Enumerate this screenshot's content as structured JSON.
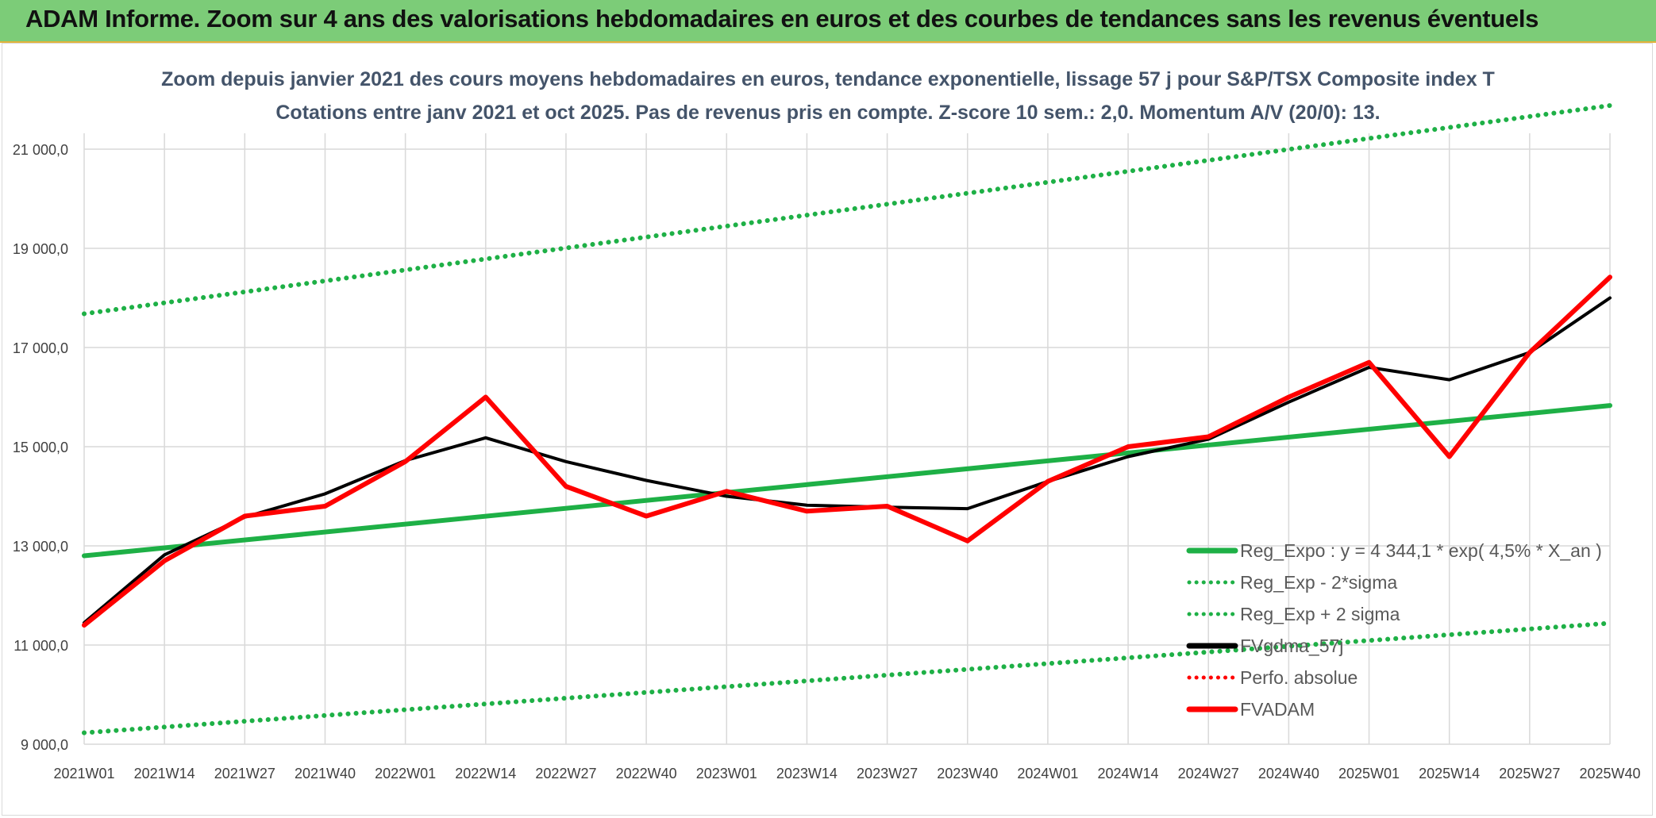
{
  "banner": {
    "title": "ADAM Informe. Zoom sur 4 ans des valorisations hebdomadaires en euros et des courbes de tendances sans les revenus éventuels"
  },
  "colors": {
    "banner_bg": "#7ccc78",
    "reg_line": "#1eb046",
    "black_line": "#000000",
    "red_line": "#ff0000",
    "grid": "#d9d9d9",
    "title": "#44546a"
  },
  "chart_data": {
    "type": "line",
    "title": "Zoom depuis janvier 2021 des cours moyens hebdomadaires en euros, tendance exponentielle, lissage 57 j pour S&P/TSX Composite index T",
    "subtitle": "Cotations entre janv 2021 et oct 2025. Pas de revenus pris en compte. Z-score 10 sem.: 2,0. Momentum A/V (20/0): 13.",
    "x_ticks": [
      "2021W01",
      "2021W14",
      "2021W27",
      "2021W40",
      "2022W01",
      "2022W14",
      "2022W27",
      "2022W40",
      "2023W01",
      "2023W14",
      "2023W27",
      "2023W40",
      "2024W01",
      "2024W14",
      "2024W27",
      "2024W40",
      "2025W01",
      "2025W14",
      "2025W27",
      "2025W40"
    ],
    "y_ticks": [
      "9 000,0",
      "11 000,0",
      "13 000,0",
      "15 000,0",
      "17 000,0",
      "19 000,0",
      "21 000,0"
    ],
    "ylim": [
      9000,
      21000
    ],
    "grid": true,
    "legend_position": "bottom-right",
    "legend": [
      {
        "label": "Reg_Expo : y = 4 344,1 * exp( 4,5% *  X_an )",
        "style": "solid",
        "color": "#1eb046"
      },
      {
        "label": "Reg_Exp - 2*sigma",
        "style": "dotted",
        "color": "#1eb046"
      },
      {
        "label": "Reg_Exp + 2 sigma",
        "style": "dotted",
        "color": "#1eb046"
      },
      {
        "label": "FVgdma_57j",
        "style": "solid",
        "color": "#000000"
      },
      {
        "label": "Perfo. absolue",
        "style": "dotted",
        "color": "#ff0000"
      },
      {
        "label": "FVADAM",
        "style": "solid",
        "color": "#ff0000"
      }
    ],
    "series": [
      {
        "name": "Reg_Expo : y = 4 344,1 * exp( 4,5% *  X_an )",
        "x": [
          "2021W01",
          "2025W40"
        ],
        "values": [
          12800,
          15830
        ]
      },
      {
        "name": "Reg_Exp - 2*sigma",
        "x": [
          "2021W01",
          "2025W40"
        ],
        "values": [
          9230,
          11440
        ]
      },
      {
        "name": "Reg_Exp + 2 sigma",
        "x": [
          "2021W01",
          "2025W40"
        ],
        "values": [
          17680,
          21880
        ]
      },
      {
        "name": "FVgdma_57j",
        "x": [
          "2021W01",
          "2021W14",
          "2021W27",
          "2021W40",
          "2022W01",
          "2022W14",
          "2022W27",
          "2022W40",
          "2023W01",
          "2023W14",
          "2023W27",
          "2023W40",
          "2024W01",
          "2024W14",
          "2024W27",
          "2024W40",
          "2025W01",
          "2025W14",
          "2025W27",
          "2025W40"
        ],
        "values": [
          11450,
          12820,
          13580,
          14050,
          14720,
          15180,
          14700,
          14320,
          14000,
          13820,
          13780,
          13750,
          14300,
          14800,
          15150,
          15900,
          16600,
          16350,
          16900,
          18000
        ]
      },
      {
        "name": "FVADAM",
        "x": [
          "2021W01",
          "2021W14",
          "2021W27",
          "2021W40",
          "2022W01",
          "2022W14",
          "2022W27",
          "2022W40",
          "2023W01",
          "2023W14",
          "2023W27",
          "2023W40",
          "2024W01",
          "2024W14",
          "2024W27",
          "2024W40",
          "2025W01",
          "2025W14",
          "2025W27",
          "2025W40"
        ],
        "values": [
          11400,
          12700,
          13600,
          13800,
          14700,
          16000,
          14200,
          13600,
          14100,
          13700,
          13800,
          13100,
          14300,
          15000,
          15200,
          16000,
          16700,
          14800,
          16900,
          18420
        ]
      }
    ]
  }
}
